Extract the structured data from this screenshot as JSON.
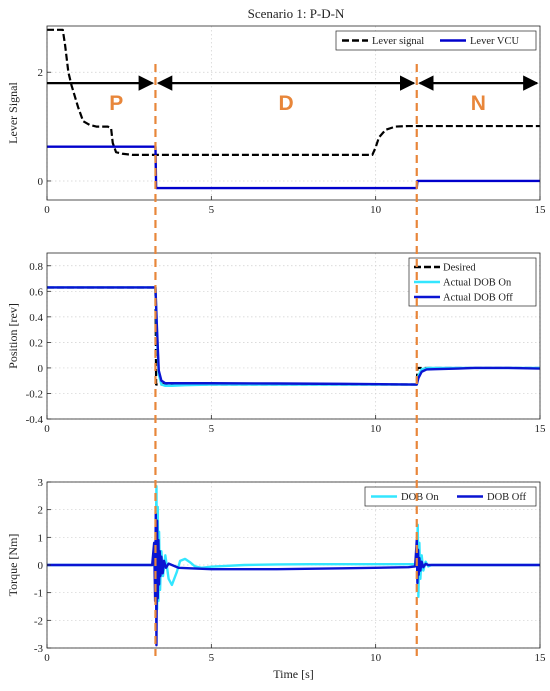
{
  "figure": {
    "title": "Scenario 1: P-D-N",
    "phase_boundaries_s": [
      3.3,
      11.25
    ],
    "boundary_color": "#E8863A",
    "phases": [
      {
        "label": "P",
        "from": 0,
        "to": 3.3
      },
      {
        "label": "D",
        "from": 3.3,
        "to": 11.25
      },
      {
        "label": "N",
        "from": 11.25,
        "to": 15
      }
    ],
    "arrow_level": 1.8,
    "phase_label_level": 1.45
  },
  "chart_data": [
    {
      "type": "line",
      "id": "lever",
      "title": "Scenario 1: P-D-N",
      "xlabel": "",
      "ylabel": "Lever Signal",
      "xlim": [
        0,
        15
      ],
      "ylim": [
        -0.35,
        2.85
      ],
      "xticks": [
        0,
        5,
        10,
        15
      ],
      "yticks": [
        0,
        2
      ],
      "grid": true,
      "legend": "top-right",
      "series": [
        {
          "name": "Lever signal",
          "color": "#000000",
          "style": "dash",
          "x": [
            0,
            0.48,
            0.55,
            0.65,
            0.75,
            0.85,
            0.95,
            1.1,
            1.3,
            1.5,
            1.7,
            1.85,
            1.95,
            2.0,
            2.1,
            2.3,
            2.6,
            3.0,
            4.0,
            6.0,
            8.0,
            9.9,
            10.0,
            10.1,
            10.3,
            10.6,
            11.0,
            12.0,
            13.0,
            14.0,
            15.0
          ],
          "y": [
            2.78,
            2.78,
            2.5,
            2.0,
            1.75,
            1.55,
            1.35,
            1.1,
            1.03,
            1.0,
            1.0,
            1.0,
            0.97,
            0.7,
            0.53,
            0.5,
            0.48,
            0.48,
            0.48,
            0.48,
            0.48,
            0.48,
            0.62,
            0.8,
            0.94,
            1.0,
            1.01,
            1.01,
            1.01,
            1.01,
            1.01
          ]
        },
        {
          "name": "Lever VCU",
          "color": "#0000CC",
          "style": "solid",
          "x": [
            0,
            3.3,
            3.32,
            11.25,
            11.27,
            15
          ],
          "y": [
            0.63,
            0.63,
            -0.13,
            -0.13,
            0.0,
            0.0
          ]
        }
      ]
    },
    {
      "type": "line",
      "id": "position",
      "xlabel": "",
      "ylabel": "Position [rev]",
      "xlim": [
        0,
        15
      ],
      "ylim": [
        -0.4,
        0.9
      ],
      "xticks": [
        0,
        5,
        10,
        15
      ],
      "yticks": [
        -0.4,
        -0.2,
        0,
        0.2,
        0.4,
        0.6,
        0.8
      ],
      "grid": true,
      "legend": "top-right",
      "series": [
        {
          "name": "Desired",
          "color": "#000000",
          "style": "dash",
          "x": [
            0,
            3.3,
            3.32,
            11.25,
            11.27,
            15
          ],
          "y": [
            0.63,
            0.63,
            -0.13,
            -0.13,
            0.0,
            0.0
          ]
        },
        {
          "name": "Actual DOB On",
          "color": "#33E6FF",
          "style": "solid",
          "x": [
            0,
            3.3,
            3.34,
            3.4,
            3.48,
            3.6,
            3.8,
            4.2,
            5.0,
            7.0,
            9.0,
            11.25,
            11.3,
            11.4,
            11.6,
            12.0,
            13.0,
            14.0,
            15.0
          ],
          "y": [
            0.63,
            0.63,
            0.3,
            -0.05,
            -0.13,
            -0.14,
            -0.14,
            -0.135,
            -0.13,
            -0.13,
            -0.13,
            -0.13,
            -0.06,
            -0.01,
            0.0,
            0.0,
            0.0,
            0.0,
            0.0
          ]
        },
        {
          "name": "Actual DOB Off",
          "color": "#0A14D2",
          "style": "solid",
          "x": [
            0,
            3.3,
            3.34,
            3.4,
            3.48,
            3.6,
            3.8,
            4.2,
            5.0,
            7.0,
            9.0,
            11.2,
            11.25,
            11.3,
            11.4,
            11.55,
            11.8,
            12.5,
            13.0,
            14.0,
            15.0
          ],
          "y": [
            0.63,
            0.63,
            0.35,
            -0.02,
            -0.1,
            -0.12,
            -0.12,
            -0.12,
            -0.12,
            -0.122,
            -0.125,
            -0.13,
            -0.13,
            -0.08,
            -0.03,
            -0.012,
            -0.01,
            -0.005,
            0.0,
            0.0,
            -0.005
          ]
        }
      ]
    },
    {
      "type": "line",
      "id": "torque",
      "xlabel": "Time [s]",
      "ylabel": "Torque [Nm]",
      "xlim": [
        0,
        15
      ],
      "ylim": [
        -3,
        3
      ],
      "xticks": [
        0,
        5,
        10,
        15
      ],
      "yticks": [
        -3,
        -2,
        -1,
        0,
        1,
        2,
        3
      ],
      "grid": true,
      "legend": "top-right",
      "series": [
        {
          "name": "DOB On",
          "color": "#33E6FF",
          "style": "solid",
          "x": [
            0,
            3.28,
            3.31,
            3.33,
            3.35,
            3.37,
            3.39,
            3.41,
            3.44,
            3.48,
            3.53,
            3.6,
            3.7,
            3.8,
            3.95,
            4.05,
            4.2,
            4.35,
            4.5,
            4.7,
            5.0,
            6.0,
            7.0,
            8.0,
            9.0,
            10.0,
            11.0,
            11.2,
            11.26,
            11.28,
            11.3,
            11.33,
            11.36,
            11.4,
            11.45,
            11.52,
            11.6,
            11.7,
            12.0,
            15.0
          ],
          "y": [
            0.0,
            0.0,
            1.0,
            2.85,
            -1.6,
            2.1,
            -1.3,
            1.2,
            -0.9,
            0.5,
            -0.4,
            0.35,
            -0.5,
            -0.72,
            -0.25,
            0.15,
            0.22,
            0.1,
            -0.05,
            -0.1,
            -0.06,
            0.0,
            0.02,
            0.03,
            0.03,
            0.03,
            0.03,
            0.03,
            0.3,
            1.45,
            -1.15,
            0.8,
            -0.5,
            0.35,
            -0.2,
            0.12,
            -0.05,
            0.0,
            0.0,
            0.0
          ]
        },
        {
          "name": "DOB Off",
          "color": "#0A14D2",
          "style": "solid",
          "x": [
            0,
            3.2,
            3.26,
            3.29,
            3.31,
            3.33,
            3.35,
            3.37,
            3.39,
            3.41,
            3.43,
            3.45,
            3.48,
            3.52,
            3.56,
            3.62,
            3.7,
            3.8,
            4.0,
            5.0,
            7.0,
            9.0,
            11.0,
            11.2,
            11.23,
            11.25,
            11.27,
            11.29,
            11.31,
            11.33,
            11.36,
            11.4,
            11.45,
            11.52,
            11.6,
            12.0,
            15.0
          ],
          "y": [
            0.0,
            0.0,
            0.8,
            -1.3,
            1.85,
            -2.9,
            1.6,
            -1.2,
            0.9,
            -0.7,
            0.5,
            -0.4,
            0.3,
            -0.3,
            0.15,
            -0.1,
            0.05,
            0.0,
            -0.1,
            -0.15,
            -0.15,
            -0.12,
            -0.08,
            -0.05,
            0.5,
            0.9,
            -0.65,
            0.55,
            -0.35,
            0.25,
            -0.2,
            0.12,
            -0.08,
            0.04,
            0.0,
            0.0,
            0.0
          ]
        }
      ]
    }
  ]
}
